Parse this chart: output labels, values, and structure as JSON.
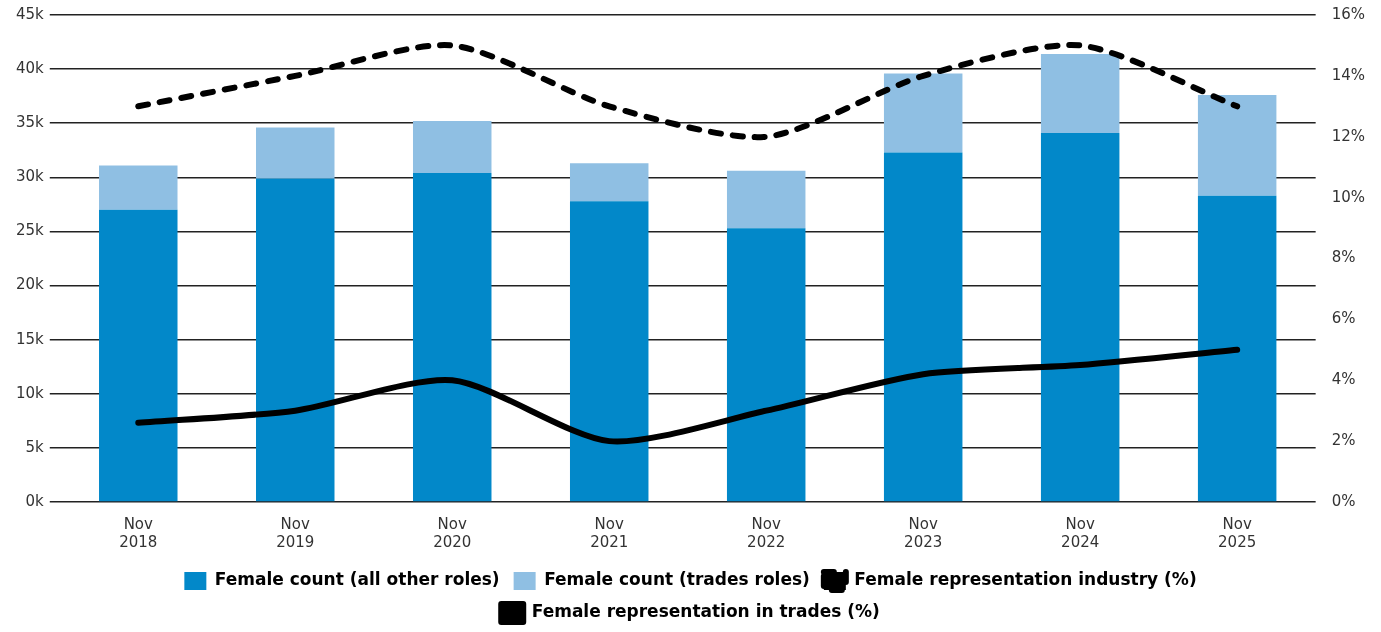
{
  "chart_data": {
    "type": "bar",
    "stacked": true,
    "categories": [
      "Nov 2018",
      "Nov 2019",
      "Nov 2020",
      "Nov 2021",
      "Nov 2022",
      "Nov 2023",
      "Nov 2024",
      "Nov 2025"
    ],
    "series": [
      {
        "name": "Female count (all other roles)",
        "color": "#0288c9",
        "values": [
          27000,
          29900,
          30400,
          27800,
          25300,
          32300,
          34100,
          28300
        ]
      },
      {
        "name": "Female count (trades roles)",
        "color": "#8fbfe3",
        "values": [
          4100,
          4700,
          4800,
          3500,
          5300,
          7300,
          7300,
          9300
        ]
      },
      {
        "name": "Female representation industry (%)",
        "type": "line",
        "axis": "y2",
        "color": "#000000",
        "line_style": "dashed",
        "values": [
          13,
          14,
          15,
          13,
          12,
          14,
          15,
          13
        ]
      },
      {
        "name": "Female representation in trades (%)",
        "type": "line",
        "axis": "y2",
        "color": "#000000",
        "line_style": "solid",
        "values": [
          2.6,
          3.0,
          4.0,
          2.0,
          3.0,
          4.2,
          4.5,
          5.0
        ]
      }
    ],
    "ylim": [
      0,
      45000
    ],
    "yticks": [
      {
        "value": 0,
        "label": "0k"
      },
      {
        "value": 5000,
        "label": "5k"
      },
      {
        "value": 10000,
        "label": "10k"
      },
      {
        "value": 15000,
        "label": "15k"
      },
      {
        "value": 20000,
        "label": "20k"
      },
      {
        "value": 25000,
        "label": "25k"
      },
      {
        "value": 30000,
        "label": "30k"
      },
      {
        "value": 35000,
        "label": "35k"
      },
      {
        "value": 40000,
        "label": "40k"
      },
      {
        "value": 45000,
        "label": "45k"
      }
    ],
    "y2lim": [
      0,
      16
    ],
    "y2ticks": [
      {
        "value": 0,
        "label": "0%"
      },
      {
        "value": 2,
        "label": "2%"
      },
      {
        "value": 4,
        "label": "4%"
      },
      {
        "value": 6,
        "label": "6%"
      },
      {
        "value": 8,
        "label": "8%"
      },
      {
        "value": 10,
        "label": "10%"
      },
      {
        "value": 12,
        "label": "12%"
      },
      {
        "value": 14,
        "label": "14%"
      },
      {
        "value": 16,
        "label": "16%"
      }
    ],
    "grid": "y",
    "legend": "bottom",
    "marker": "none"
  }
}
